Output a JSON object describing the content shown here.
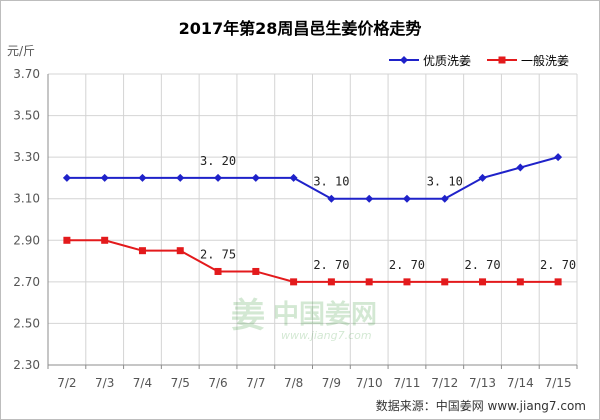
{
  "chart_data": {
    "type": "line",
    "title": "2017年第28周昌邑生姜价格走势",
    "ylabel": "元/斤",
    "ylim": [
      2.3,
      3.7
    ],
    "yticks": [
      "3.70",
      "3.50",
      "3.30",
      "3.10",
      "2.90",
      "2.70",
      "2.50",
      "2.30"
    ],
    "grid": true,
    "legend_position": "top-right",
    "categories": [
      "7/2",
      "7/3",
      "7/4",
      "7/5",
      "7/6",
      "7/7",
      "7/8",
      "7/9",
      "7/10",
      "7/11",
      "7/12",
      "7/13",
      "7/14",
      "7/15"
    ],
    "series": [
      {
        "name": "优质洗姜",
        "color": "#1f22c9",
        "marker": "diamond",
        "values": [
          3.2,
          3.2,
          3.2,
          3.2,
          3.2,
          3.2,
          3.2,
          3.1,
          3.1,
          3.1,
          3.1,
          3.2,
          3.25,
          3.3
        ]
      },
      {
        "name": "一般洗姜",
        "color": "#e31a1c",
        "marker": "square",
        "values": [
          2.9,
          2.9,
          2.85,
          2.85,
          2.75,
          2.75,
          2.7,
          2.7,
          2.7,
          2.7,
          2.7,
          2.7,
          2.7,
          2.7
        ]
      }
    ],
    "annotations": [
      {
        "series": 0,
        "index": 4,
        "text": "3. 20"
      },
      {
        "series": 0,
        "index": 7,
        "text": "3. 10"
      },
      {
        "series": 0,
        "index": 10,
        "text": "3. 10"
      },
      {
        "series": 1,
        "index": 4,
        "text": "2. 75"
      },
      {
        "series": 1,
        "index": 7,
        "text": "2. 70"
      },
      {
        "series": 1,
        "index": 9,
        "text": "2. 70"
      },
      {
        "series": 1,
        "index": 11,
        "text": "2. 70"
      },
      {
        "series": 1,
        "index": 13,
        "text": "2. 70"
      }
    ],
    "source": "数据来源：中国姜网 www.jiang7.com",
    "watermark": {
      "glyph": "姜",
      "text": "中国姜网",
      "url": "www.jiang7.com"
    }
  }
}
